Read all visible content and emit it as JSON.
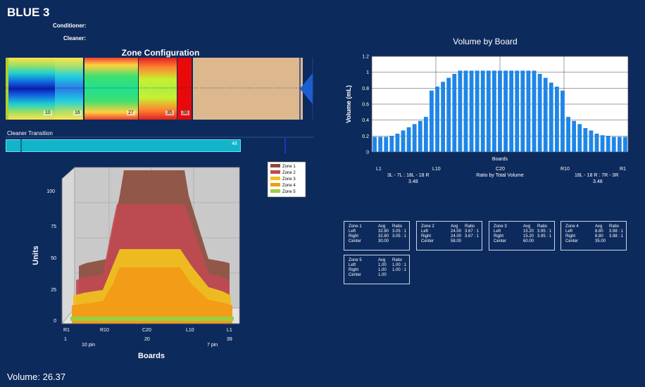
{
  "header": {
    "title": "BLUE 3",
    "conditioner_label": "Conditioner:",
    "cleaner_label": "Cleaner:"
  },
  "zone_config": {
    "title": "Zone Configuration",
    "labels": [
      "10",
      "16",
      "27",
      "35",
      "38"
    ]
  },
  "cleaner": {
    "label": "Cleaner Transition",
    "value": "48"
  },
  "units_chart": {
    "ylabel": "Units",
    "xlabel": "Boards",
    "legend": [
      "Zone 1",
      "Zone 2",
      "Zone 3",
      "Zone 4",
      "Zone 5"
    ],
    "colors": [
      "#8b4a3a",
      "#c04a52",
      "#f0c020",
      "#f29a18",
      "#9ad040"
    ],
    "ticks": [
      "0",
      "25",
      "50",
      "75",
      "100"
    ],
    "xticks": [
      "R1",
      "R10",
      "C20",
      "L10",
      "L1"
    ],
    "xnums": [
      "1",
      "20",
      "39"
    ],
    "pin_labels": [
      "10 pin",
      "7 pin"
    ]
  },
  "volume": {
    "label": "Volume: 26.37"
  },
  "chart_data": {
    "type": "bar",
    "title": "Volume by Board",
    "xlabel": "Boards",
    "ylabel": "Volume (mL)",
    "ylim": [
      0,
      1.2
    ],
    "yticks": [
      "0",
      "0.2",
      "0.4",
      "0.6",
      "0.8",
      "1",
      "1.2"
    ],
    "xtick_labels": [
      "L1",
      "L10",
      "C20",
      "R10",
      "R1"
    ],
    "values": [
      0.19,
      0.19,
      0.19,
      0.2,
      0.23,
      0.27,
      0.31,
      0.35,
      0.39,
      0.44,
      0.77,
      0.82,
      0.88,
      0.93,
      0.98,
      1.02,
      1.02,
      1.02,
      1.02,
      1.02,
      1.02,
      1.02,
      1.02,
      1.02,
      1.02,
      1.02,
      1.02,
      1.02,
      1.02,
      0.98,
      0.93,
      0.87,
      0.82,
      0.77,
      0.44,
      0.39,
      0.35,
      0.3,
      0.27,
      0.23,
      0.21,
      0.2,
      0.19,
      0.19,
      0.19
    ],
    "annotations": {
      "left_ratio": "3L - 7L : 18L - 18 R",
      "left_value": "3.48",
      "center": "Ratio by Total Volume",
      "right_ratio": "18L - 18 R : 7R - 3R",
      "right_value": "3.48"
    }
  },
  "zone_stats": [
    {
      "zone": "Zone 1",
      "avg": "Avg",
      "ratio": "Ratio",
      "left": "32.80",
      "left_r": "3.05 : 1",
      "right": "32.80",
      "right_r": "3.05 : 1",
      "center": "30.00"
    },
    {
      "zone": "Zone 2",
      "avg": "Avg",
      "ratio": "Ratio",
      "left": "24.00",
      "left_r": "3.67 : 1",
      "right": "24.00",
      "right_r": "3.67 : 1",
      "center": "58.00"
    },
    {
      "zone": "Zone 3",
      "avg": "Avg",
      "ratio": "Ratio",
      "left": "15.20",
      "left_r": "3.95 : 1",
      "right": "15.20",
      "right_r": "3.95 : 1",
      "center": "60.00"
    },
    {
      "zone": "Zone 4",
      "avg": "Avg",
      "ratio": "Ratio",
      "left": "8.80",
      "left_r": "3.98 : 1",
      "right": "8.80",
      "right_r": "3.98 : 1",
      "center": "35.00"
    },
    {
      "zone": "Zone 5",
      "avg": "Avg",
      "ratio": "Ratio",
      "left": "1.00",
      "left_r": "1.00 : 1",
      "right": "1.00",
      "right_r": "1.00 : 1",
      "center": "1.00"
    }
  ],
  "stats_labels": {
    "left": "Left",
    "right": "Right",
    "center": "Center"
  }
}
